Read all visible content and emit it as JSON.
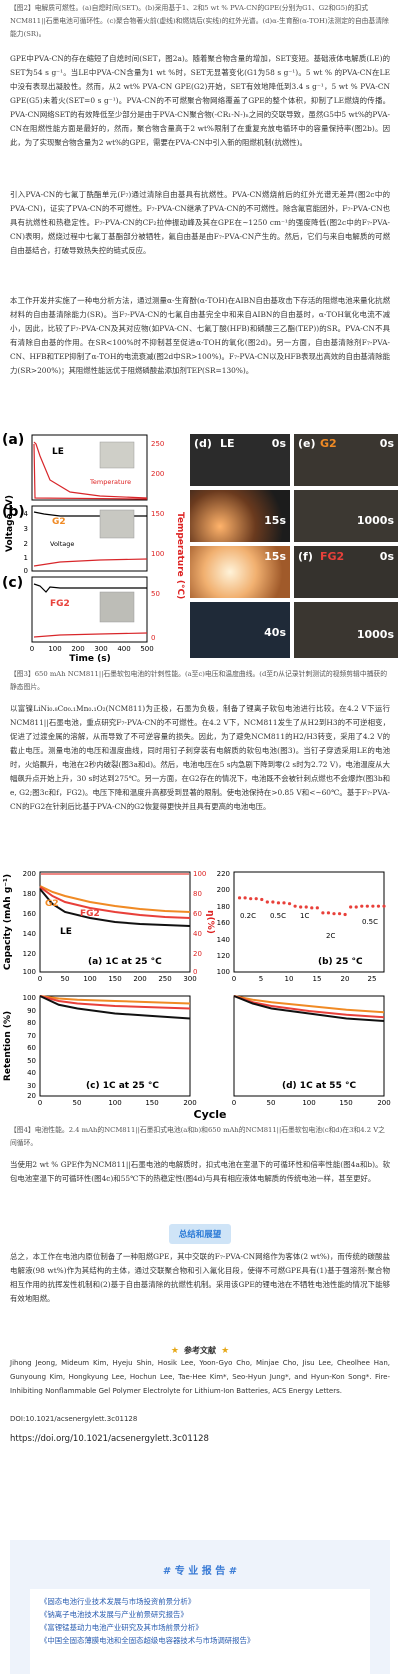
{
  "intro": {
    "fig2_caption": "【图2】电解质可燃性。(a)自熄时间(SET)。(b)采用基于1、2和5 wt % PVA-CN的GPE(分别为G1、G2和G5)的扣式NCM811||石墨电池可循环性。(c)聚合物著火前(虚线)和燃烧后(实线)的红外光谱。(d)α-生育酚(α-TOH)法测定的自由基清除能力(SR)。",
    "p1": "GPE中PVA-CN的存在缩短了自熄时间(SET，图2a)。随着聚合物含量的增加，SET变短。基础液体电解质(LE)的SET为54 s g⁻¹。当LE中PVA-CN含量为1 wt %时，SET无显著变化(G1为58 s g⁻¹)。5 wt % 的PVA-CN在LE中没有表现出凝胶性。然而，从2 wt% PVA-CN GPE(G2)开始，SET有效地降低到3.4 s g⁻¹，5 wt % PVA-CN GPE(G5)未着火(SET=0 s g⁻¹)。PVA-CN的不可燃聚合物网络覆盖了GPE的整个体积，抑制了LE燃烧的传播。PVA-CN网络SET的有效降低至少部分是由于PVA-CN聚合物(-CR₁-N-)ₙ之间的交联导致，虽然G5中5 wt%的PVA-CN在阻燃性能方面是最好的，然而，聚合物含量高于2 wt%限制了在重复充放电循环中的容量保持率(图2b)。因此，为了实现聚合物含量为2 wt%的GPE，需要在PVA-CN中引入新的阻燃机制(抗燃性)。",
    "p2": "引入PVA-CN的七氟丁酰酯单元(F₇)通过清除自由基具有抗燃性。PVA-CN燃烧前后的红外光谱无差异(图2c中的PVA-CN)，证实了PVA-CN的不可燃性。F₇-PVA-CN继承了PVA-CN的不可燃性。除含氟官能团外，F₇-PVA-CN也具有抗燃性和热稳定性。F₇-PVA-CN的CF₂拉伸振动峰及其在GPE在~1250 cm⁻¹的强度降低(图2c中的F₇-PVA-CN)表明，燃烧过程中七氟丁基酯部分被牺牲，氟自由基是由F₇-PVA-CN产生的。然后，它们与来自电解质的可燃自由基结合，打破导致热失控的链式反应。",
    "p3": "本工作开发并实施了一种电分析方法，通过测量α-生育酚(α-TOH)在AIBN自由基攻击下存活的阻燃电池来量化抗燃材料的自由基清除能力(SR)。当F₇-PVA-CN的七氟自由基完全中和来自AIBN的自由基时，α-TOH氧化电流不减小，因此，比较了F₇-PVA-CN及其对应物(如PVA-CN、七氟丁酸(HFB)和磷酸三乙酯(TEP))的SR。PVA-CN不具有清除自由基的作用。在SR<100%时不抑制甚至促进α-TOH的氧化(图2d)。另一方面，自由基清除剂F₇-PVA-CN、HFB和TEP抑制了α-TOH的电流衰减(图2d中SR>100%)。F₇-PVA-CN以及HFB表现出高效的自由基清除能力(SR>200%)；其阻燃性能远优于阻燃磷酸盐添加剂TEP(SR=130%)。"
  },
  "fig3": {
    "panels": [
      "(a)",
      "(b)",
      "(c)"
    ],
    "labels": {
      "le": "LE",
      "g2": "G2",
      "fg2": "FG2"
    },
    "temperature_label": "Temperature",
    "voltage_label": "Voltage",
    "ylabel_left": "Voltage (V)",
    "ylabel_right": "Temperature (°C)",
    "xlabel": "Time (s)",
    "xticks": [
      "0",
      "100",
      "200",
      "300",
      "400",
      "500"
    ],
    "vticks": [
      "4",
      "3",
      "2",
      "1",
      "0"
    ],
    "tticks": [
      "250",
      "200",
      "150",
      "100",
      "50",
      "0"
    ],
    "photos": {
      "d": "(d)",
      "e": "(e)",
      "f": "(f)",
      "d_label": "LE",
      "e_label": "G2",
      "f_label": "FG2",
      "times": [
        "0s",
        "0s",
        "15s",
        "1000s",
        "15s",
        "0s",
        "40s",
        "1000s"
      ]
    },
    "caption": "【图3】650 mAh NCM811||石墨软包电池的针刺性能。(a至c)电压和温度曲线。(d至f)从记录针刺测试的视频剪辑中捕获的静态图片。"
  },
  "p4": "以富镍LiNi₀.₈Co₀.₁Mn₀.₁O₂(NCM811)为正极，石墨为负极，制备了锂离子软包电池进行比较。在4.2 V下运行NCM811||石墨电池，重点研究F₇-PVA-CN的不可燃性。在4.2 V下，NCM811发生了从H2到H3的不可逆相变，促进了过渡金属的溶解，从而导致了不可逆容量的损失。因此，为了避免NCM811的H2/H3转变，采用了4.2 V的截止电压。测量电池的电压和温度曲线，同时用钉子刺穿装有电解质的软包电池(图3)。当钉子穿透采用LE的电池时，火焰飘升，电池在2秒内破裂(图3a和d)。然后，电池电压在5 s内急剧下降到零(2 s时为2.72 V)，电池温度从大幅飙升点开始上升，30 s时达到275℃。另一方面，在G2存在的情况下，电池既不会被针刺点燃也不会爆炸(图3b和e, G2;图3c和f，FG2)。电压下降和温度升高都受到显著的限制。使电池保持在>0.85 V和<~60℃。基于F₇-PVA-CN的FG2在针刺后比基于PVA-CN的G2恢复得更快并且具有更高的电池电压。",
  "fig4": {
    "a": {
      "panel_label": "(a) 1C at 25 °C",
      "ylabel_left": "Capacity (mAh g⁻¹)",
      "ylabel_right": "η(%)",
      "yticks": [
        "200",
        "180",
        "160",
        "140",
        "120",
        "100"
      ],
      "rticks": [
        "100",
        "80",
        "60",
        "40",
        "20",
        "0"
      ],
      "xticks": [
        "0",
        "50",
        "100",
        "150",
        "200",
        "250",
        "300"
      ],
      "legend": [
        "G2",
        "FG2",
        "LE"
      ]
    },
    "b": {
      "panel_label": "(b) 25 °C",
      "yticks": [
        "220",
        "200",
        "180",
        "160",
        "140",
        "120",
        "100"
      ],
      "xticks": [
        "0",
        "5",
        "10",
        "15",
        "20",
        "25"
      ],
      "rates": [
        "0.2C",
        "0.5C",
        "1C",
        "2C",
        "0.5C"
      ]
    },
    "c": {
      "panel_label": "(c) 1C at 25 °C",
      "ylabel": "Retention (%)",
      "yticks": [
        "100",
        "90",
        "80",
        "70",
        "60",
        "50",
        "40",
        "30",
        "20"
      ],
      "xticks": [
        "0",
        "50",
        "100",
        "150",
        "200"
      ]
    },
    "d": {
      "panel_label": "(d) 1C at 55 °C",
      "xticks": [
        "0",
        "50",
        "100",
        "150",
        "200"
      ]
    },
    "xlabel": "Cycle",
    "caption": "【图4】电池性能。2.4 mAh的NCM811||石墨扣式电池(a和b)和650 mAh的NCM811||石墨软包电池(c和d)在3和4.2 V之间循环。"
  },
  "chart_data": [
    {
      "type": "line",
      "title": "(a) 1C at 25 °C",
      "xlabel": "",
      "ylabel": "Capacity (mAh g⁻¹)",
      "xlim": [
        0,
        300
      ],
      "ylim": [
        100,
        200
      ],
      "x": [
        0,
        25,
        50,
        100,
        150,
        200,
        250,
        300
      ],
      "series": [
        {
          "name": "G2",
          "values": [
            186,
            180,
            176,
            170,
            166,
            163,
            161,
            160
          ]
        },
        {
          "name": "FG2",
          "values": [
            185,
            176,
            170,
            164,
            160,
            157,
            155,
            154
          ]
        },
        {
          "name": "LE",
          "values": [
            183,
            168,
            160,
            154,
            150,
            148,
            147,
            146
          ]
        }
      ]
    },
    {
      "type": "scatter",
      "title": "(b) 25 °C",
      "xlim": [
        0,
        27
      ],
      "ylim": [
        100,
        220
      ],
      "x": [
        1,
        2,
        3,
        4,
        5,
        6,
        7,
        8,
        9,
        10,
        11,
        12,
        13,
        14,
        15,
        16,
        17,
        18,
        19,
        20,
        21,
        22,
        23,
        24,
        25,
        26,
        27
      ],
      "series": [
        {
          "name": "",
          "values": [
            189,
            189,
            188,
            188,
            187,
            184,
            184,
            183,
            183,
            182,
            179,
            178,
            178,
            177,
            177,
            171,
            171,
            170,
            170,
            169,
            178,
            178,
            179,
            179,
            179,
            179,
            179
          ]
        }
      ]
    },
    {
      "type": "line",
      "title": "(c) 1C at 25 °C",
      "ylabel": "Retention (%)",
      "xlim": [
        0,
        200
      ],
      "ylim": [
        20,
        100
      ],
      "x": [
        0,
        25,
        50,
        100,
        150,
        200
      ],
      "series": [
        {
          "name": "",
          "values": [
            100,
            98,
            97,
            96,
            95,
            94
          ]
        },
        {
          "name": "",
          "values": [
            100,
            96,
            94,
            92,
            91,
            90
          ]
        },
        {
          "name": "",
          "values": [
            100,
            93,
            90,
            86,
            84,
            82
          ]
        }
      ]
    },
    {
      "type": "line",
      "title": "(d) 1C at 55 °C",
      "xlim": [
        0,
        200
      ],
      "ylim": [
        20,
        100
      ],
      "x": [
        0,
        25,
        50,
        100,
        150,
        200
      ],
      "series": [
        {
          "name": "",
          "values": [
            100,
            97,
            95,
            92,
            89,
            87
          ]
        },
        {
          "name": "",
          "values": [
            100,
            95,
            92,
            88,
            85,
            83
          ]
        },
        {
          "name": "",
          "values": [
            100,
            94,
            90,
            86,
            82,
            80
          ]
        }
      ]
    }
  ],
  "p5": "当使用2 wt % GPE作为NCM811||石墨电池的电解质时，扣式电池在室温下的可循环性和倍率性能(图4a和b)。软包电池室温下的可循环性(图4c)和55℃下的热稳定性(图4d)与具有相应液体电解质的传统电池一样，甚至更好。",
  "summary_title": "总结和展望",
  "p6": "总之，本工作在电池内原位制备了一种阻燃GPE，其中交联的F₇-PVA-CN网络作为客体(2 wt%)，而传统的碳酸盐电解液(98 wt%)作为其结构的主体，通过交联聚合物和引入氟化目段，使得不可燃GPE具有(1)基于强溶剂-聚合物相互作用的抗挥发性机制和(2)基于自由基清除的抗燃性机制。采用该GPE的锂电池在不牺牲电池性能的情况下能够有效地阻燃。",
  "ref_title": "参考文献",
  "ref_text": "Jihong Jeong, Mideum Kim, Hyeju Shin, Hosik Lee, Yoon-Gyo Cho, Minjae Cho, Jisu Lee, Cheolhee Han, Gunyoung Kim, Hongkyung Lee, Hochun Lee, Tae-Hee Kim*, Seo-Hyun Jung*, and Hyun-Kon Song*. Fire-Inhibiting Nonflammable Gel Polymer Electrolyte for Lithium-Ion Batteries, ACS Energy Letters.",
  "doi": "DOI:10.1021/acsenergylett.3c01128",
  "url": "https://doi.org/10.1021/acsenergylett.3c01128",
  "reports": {
    "title": "# 专 业 报 告 #",
    "items": [
      "《固态电池行业技术发展与市场投资前景分析》",
      "《钠离子电池技术发展与产业前景研究报告》",
      "《富锂锰基动力电池产业研究及其市场前景分析》",
      "《中国全固态薄膜电池和全固态超级电容器技术与市场调研报告》"
    ]
  },
  "colors": {
    "le": "#111111",
    "g2": "#f08a24",
    "fg2": "#e8403a",
    "temp": "#d8262a",
    "accent": "#3a7bd5"
  }
}
